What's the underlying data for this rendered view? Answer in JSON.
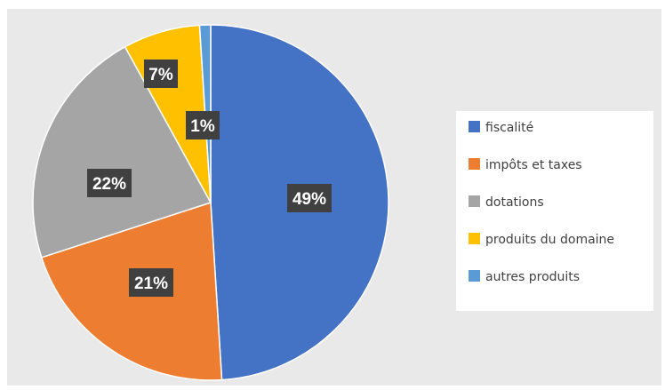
{
  "chart_data": {
    "type": "pie",
    "title": "",
    "categories": [
      "fiscalité",
      "impôts et taxes",
      "dotations",
      "produits du domaine",
      "autres produits"
    ],
    "values": [
      49,
      21,
      22,
      7,
      1
    ],
    "labels": [
      "49%",
      "21%",
      "22%",
      "7%",
      "1%"
    ],
    "colors": [
      "#4472c4",
      "#ed7d31",
      "#a5a5a5",
      "#ffc000",
      "#5b9bd5"
    ],
    "start_angle_deg": 0,
    "direction": "clockwise",
    "legend_position": "right",
    "data_label_background": "#404040"
  }
}
